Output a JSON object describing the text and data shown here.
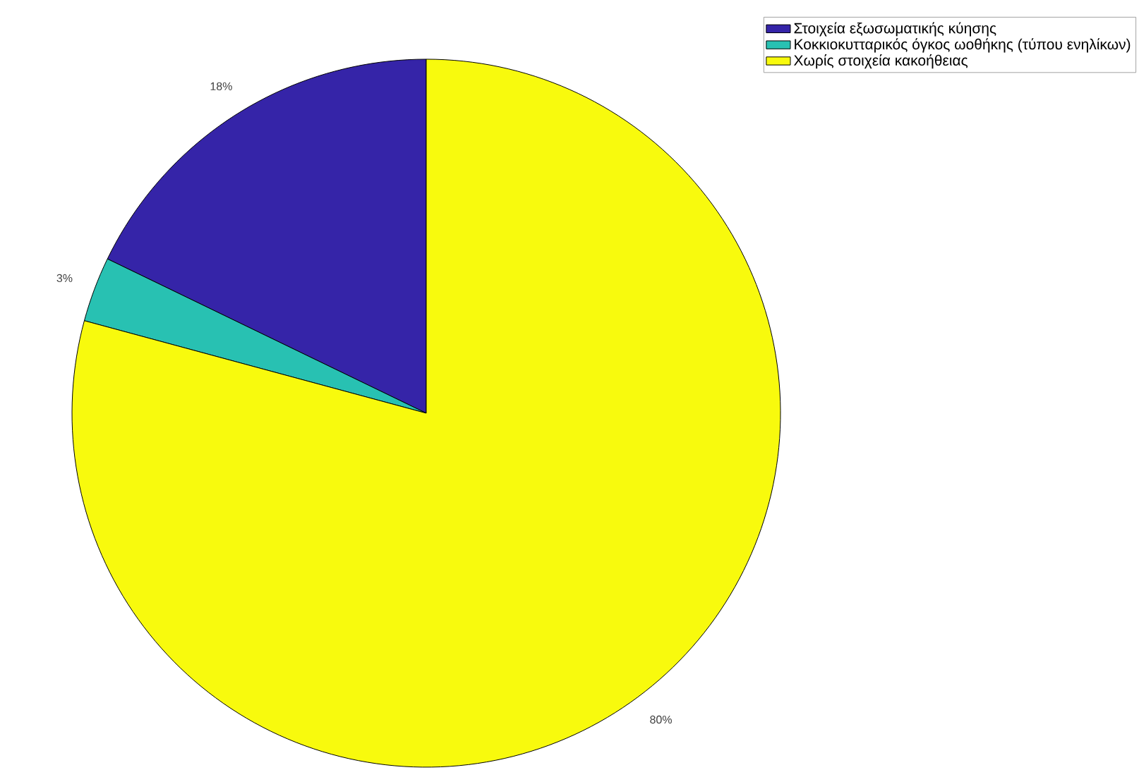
{
  "chart_data": {
    "type": "pie",
    "categories": [
      "Στοιχεία εξωσωματικής κύησης",
      "Κοκκιοκυτταρικός όγκος ωοθήκης (τύπου ενηλίκων)",
      "Χωρίς στοιχεία κακοήθειας"
    ],
    "values": [
      18,
      3,
      80
    ],
    "value_labels": [
      "18%",
      "3%",
      "80%"
    ],
    "colors": [
      "#3524a8",
      "#28c1b2",
      "#f8fa0d"
    ],
    "legend": "top right"
  }
}
